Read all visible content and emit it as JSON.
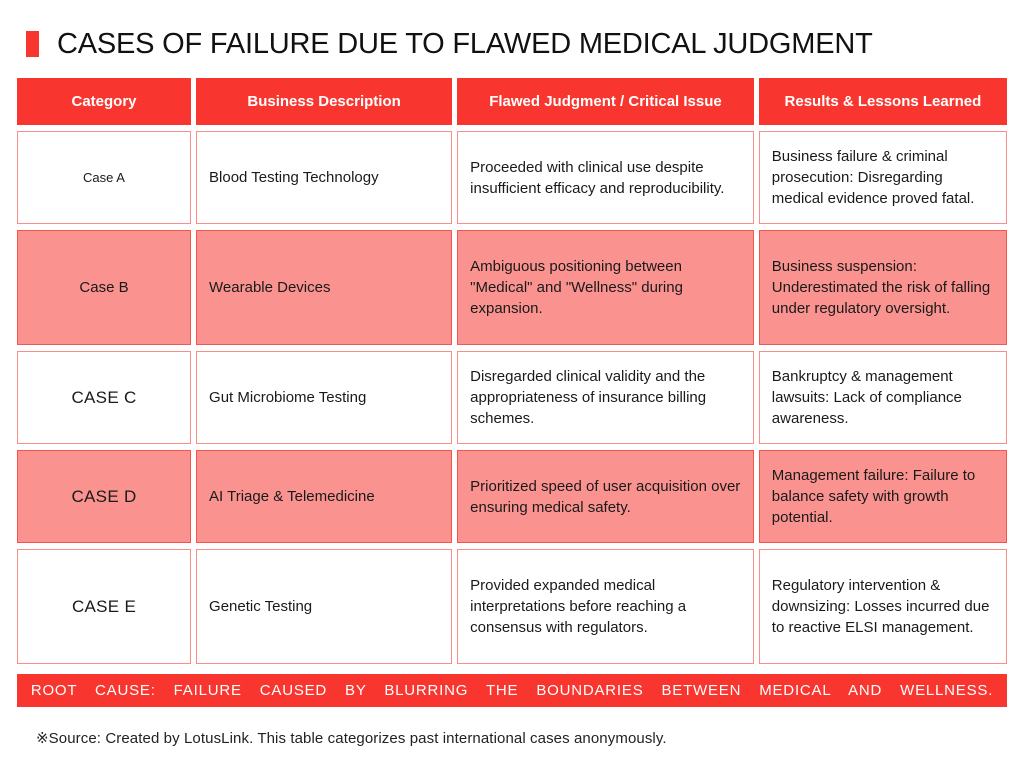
{
  "title": "CASES OF FAILURE DUE TO FLAWED MEDICAL JUDGMENT",
  "colors": {
    "red": "#F8352E",
    "pink": "#FA938F",
    "border-light": "#F98D87",
    "border-dark": "#F5554F"
  },
  "table": {
    "headers": [
      "Category",
      "Business Description",
      "Flawed Judgment / Critical Issue",
      "Results & Lessons Learned"
    ],
    "rows": [
      {
        "category": "Case A",
        "business": "Blood Testing Technology",
        "judgment": "Proceeded with clinical use despite insufficient efficacy and reproducibility.",
        "results": "Business failure & criminal prosecution: Disregarding medical evidence proved fatal.",
        "highlighted": false
      },
      {
        "category": "Case B",
        "business": "Wearable Devices",
        "judgment": "Ambiguous positioning between \"Medical\" and \"Wellness\" during expansion.",
        "results": "Business suspension: Underestimated the risk of falling under regulatory oversight.",
        "highlighted": true
      },
      {
        "category": "CASE C",
        "business": "Gut Microbiome Testing",
        "judgment": "Disregarded clinical validity and the appropriateness of insurance billing schemes.",
        "results": "Bankruptcy & management lawsuits: Lack of compliance awareness.",
        "highlighted": false
      },
      {
        "category": "CASE D",
        "business": "AI Triage & Telemedicine",
        "judgment": "Prioritized speed of user acquisition over ensuring medical safety.",
        "results": "Management failure: Failure to balance safety with growth potential.",
        "highlighted": true
      },
      {
        "category": "CASE E",
        "business": "Genetic Testing",
        "judgment": "Provided expanded medical interpretations before reaching a consensus with regulators.",
        "results": "Regulatory intervention & downsizing: Losses incurred due to reactive ELSI management.",
        "highlighted": false
      }
    ]
  },
  "banner": "ROOT CAUSE: FAILURE CAUSED BY BLURRING THE BOUNDARIES BETWEEN MEDICAL AND WELLNESS.",
  "footnote": "※Source: Created by LotusLink. This table categorizes past international cases anonymously."
}
